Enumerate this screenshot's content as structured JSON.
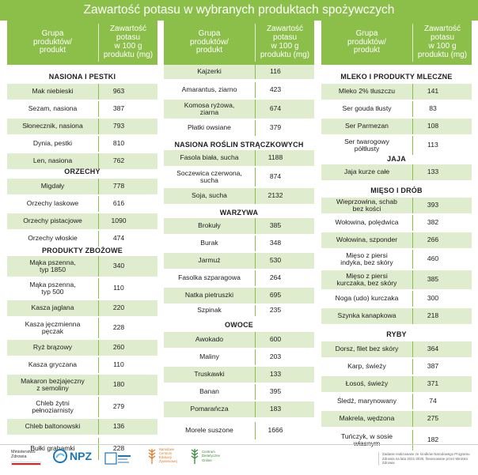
{
  "title": "Zawartość potasu w wybranych produktach spożywczych",
  "header": {
    "group": "Grupa\nproduktów/\nprodukt",
    "potassium": "Zawartość\npotasu\nw 100 g\nproduktu (mg)"
  },
  "columns": [
    [
      {
        "type": "section",
        "label": "NASIONA I PESTKI"
      },
      {
        "name": "Mak niebieski",
        "value": "963"
      },
      {
        "name": "Sezam, nasiona",
        "value": "387"
      },
      {
        "name": "Słonecznik, nasiona",
        "value": "793"
      },
      {
        "name": "Dynia, pestki",
        "value": "810"
      },
      {
        "name": "Len, nasiona",
        "value": "762"
      },
      {
        "type": "section",
        "label": "ORZECHY"
      },
      {
        "name": "Migdały",
        "value": "778"
      },
      {
        "name": "Orzechy laskowe",
        "value": "616"
      },
      {
        "name": "Orzechy pistacjowe",
        "value": "1090"
      },
      {
        "name": "Orzechy włoskie",
        "value": "474"
      },
      {
        "type": "section",
        "label": "PRODUKTY ZBOŻOWE"
      },
      {
        "name": "Mąka pszenna,\ntyp 1850",
        "value": "340"
      },
      {
        "name": "Mąka pszenna,\ntyp 500",
        "value": "110"
      },
      {
        "name": "Kasza jaglana",
        "value": "220"
      },
      {
        "name": "Kasza jęczmienna\npęczak",
        "value": "228"
      },
      {
        "name": "Ryż brązowy",
        "value": "260"
      },
      {
        "name": "Kasza gryczana",
        "value": "110"
      },
      {
        "name": "Makaron bezjajeczny\nz semoliny",
        "value": "180"
      },
      {
        "name": "Chleb żytni\npełnoziarnisty",
        "value": "279"
      },
      {
        "name": "Chleb baltonowski",
        "value": "136"
      },
      {
        "name": "Bułki grahamki",
        "value": "228"
      }
    ],
    [
      {
        "name": "Kajzerki",
        "value": "116"
      },
      {
        "name": "Amarantus, ziarno",
        "value": "423"
      },
      {
        "name": "Komosa ryżowa,\nziarna",
        "value": "674"
      },
      {
        "name": "Płatki owsiane",
        "value": "379"
      },
      {
        "type": "section",
        "label": "NASIONA ROŚLIN STRĄCZKOWYCH"
      },
      {
        "name": "Fasola biała, sucha",
        "value": "1188"
      },
      {
        "name": "Soczewica czerwona,\nsucha",
        "value": "874"
      },
      {
        "name": "Soja, sucha",
        "value": "2132"
      },
      {
        "type": "section",
        "label": "WARZYWA"
      },
      {
        "name": "Brokuły",
        "value": "385"
      },
      {
        "name": "Burak",
        "value": "348"
      },
      {
        "name": "Jarmuż",
        "value": "530"
      },
      {
        "name": "Fasolka szparagowa",
        "value": "264"
      },
      {
        "name": "Natka pietruszki",
        "value": "695"
      },
      {
        "name": "Szpinak",
        "value": "235"
      },
      {
        "type": "section",
        "label": "OWOCE"
      },
      {
        "name": "Awokado",
        "value": "600"
      },
      {
        "name": "Maliny",
        "value": "203"
      },
      {
        "name": "Truskawki",
        "value": "133"
      },
      {
        "name": "Banan",
        "value": "395"
      },
      {
        "name": "Pomarańcza",
        "value": "183"
      },
      {
        "name": "Morele suszone",
        "value": "1666"
      }
    ],
    [
      {
        "type": "section",
        "label": "MLEKO I PRODUKTY MLECZNE"
      },
      {
        "name": "Mleko 2% tłuszczu",
        "value": "141"
      },
      {
        "name": "Ser gouda tłusty",
        "value": "83"
      },
      {
        "name": "Ser Parmezan",
        "value": "108"
      },
      {
        "name": "Ser twarogowy\npółtłusty",
        "value": "113"
      },
      {
        "type": "section",
        "label": "JAJA"
      },
      {
        "name": "Jaja kurze całe",
        "value": "133"
      },
      {
        "type": "section",
        "label": "MIĘSO I DRÓB"
      },
      {
        "name": "Wieprzowina, schab\nbez kości",
        "value": "393"
      },
      {
        "name": "Wołowina, polędwica",
        "value": "382"
      },
      {
        "name": "Wołowina, szponder",
        "value": "266"
      },
      {
        "name": "Mięso z piersi\nindyka, bez skóry",
        "value": "460"
      },
      {
        "name": "Mięso z piersi\nkurczaka, bez skóry",
        "value": "385"
      },
      {
        "name": "Noga (udo) kurczaka",
        "value": "300"
      },
      {
        "name": "Szynka kanapkowa",
        "value": "218"
      },
      {
        "type": "section",
        "label": "RYBY"
      },
      {
        "name": "Dorsz, filet bez skóry",
        "value": "364"
      },
      {
        "name": "Karp, świeży",
        "value": "387"
      },
      {
        "name": "Łosoś, świeży",
        "value": "371"
      },
      {
        "name": "Śledź, marynowany",
        "value": "74"
      },
      {
        "name": "Makrela, wędzona",
        "value": "275"
      },
      {
        "name": "Tuńczyk, w sosie\nwłasnym",
        "value": "182"
      }
    ]
  ],
  "footer": {
    "ministry": "Ministerstwo\nZdrowia",
    "npz": "NPZ",
    "org3": "Narodowe\nCentrum\nEdukacji\nŻywieniowej",
    "org4": "Centrum\nDietetyczne\nOnline",
    "note": "Zadanie realizowane ze środków Narodowego Programu Zdrowia na lata 2021-2025, finansowane przez Ministra Zdrowia"
  },
  "colors": {
    "green": "#8cbf4a",
    "shade": "#dfeccd",
    "red": "#d8232a",
    "blue": "#1b75bb",
    "orange": "#e07b2a"
  }
}
